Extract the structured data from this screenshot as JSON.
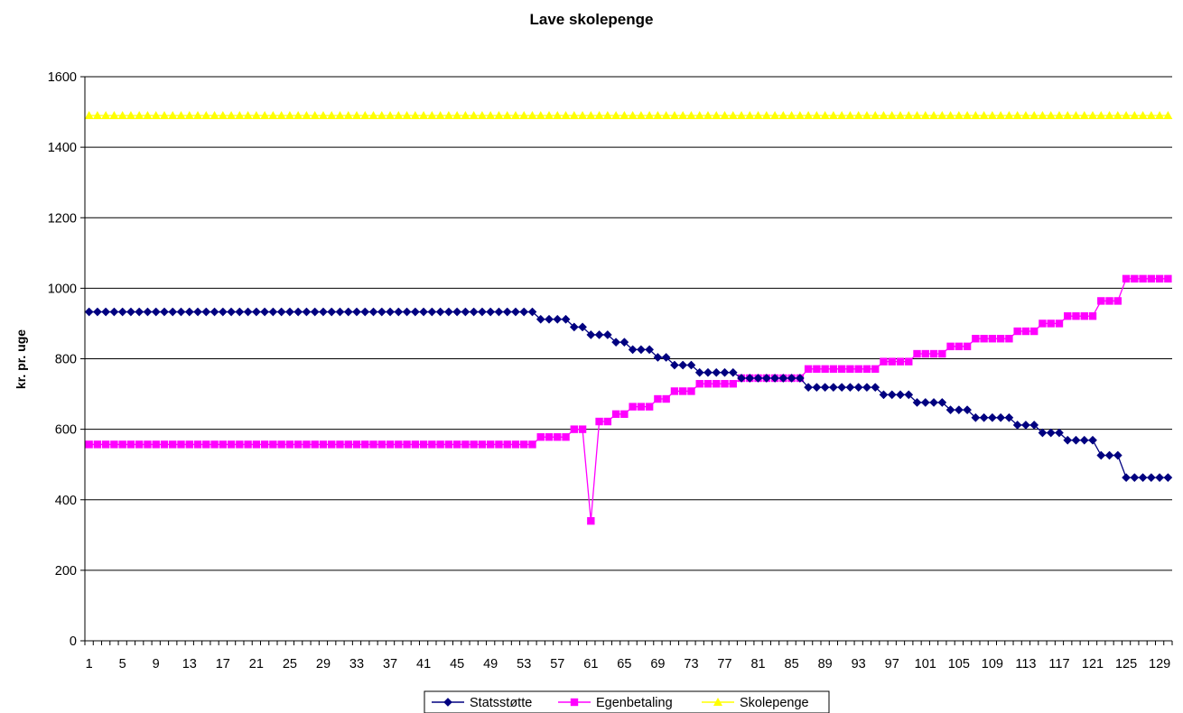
{
  "chart_data": {
    "type": "line",
    "title": "Lave skolepenge",
    "xlabel": "",
    "ylabel": "kr. pr. uge",
    "ylim": [
      0,
      1600
    ],
    "yticks": [
      0,
      200,
      400,
      600,
      800,
      1000,
      1200,
      1400,
      1600
    ],
    "x_range": [
      1,
      130
    ],
    "xtick_labels": [
      "1",
      "5",
      "9",
      "13",
      "17",
      "21",
      "25",
      "29",
      "33",
      "37",
      "41",
      "45",
      "49",
      "53",
      "57",
      "61",
      "65",
      "69",
      "73",
      "77",
      "81",
      "85",
      "89",
      "93",
      "97",
      "101",
      "105",
      "109",
      "113",
      "117",
      "121",
      "125",
      "129"
    ],
    "grid": "horizontal",
    "legend_position": "bottom",
    "series": [
      {
        "name": "Statsstøtte",
        "color": "#000080",
        "marker": "diamond",
        "segments": [
          [
            1,
            54,
            933
          ],
          [
            55,
            58,
            912
          ],
          [
            59,
            60,
            890
          ],
          [
            61,
            63,
            868
          ],
          [
            64,
            65,
            847
          ],
          [
            66,
            68,
            826
          ],
          [
            69,
            70,
            804
          ],
          [
            71,
            73,
            782
          ],
          [
            74,
            78,
            761
          ],
          [
            79,
            86,
            745
          ],
          [
            87,
            95,
            719
          ],
          [
            96,
            99,
            698
          ],
          [
            100,
            103,
            676
          ],
          [
            104,
            106,
            655
          ],
          [
            107,
            111,
            633
          ],
          [
            112,
            114,
            612
          ],
          [
            115,
            117,
            590
          ],
          [
            118,
            121,
            569
          ],
          [
            122,
            124,
            526
          ],
          [
            125,
            130,
            463
          ]
        ]
      },
      {
        "name": "Egenbetaling",
        "color": "#ff00ff",
        "marker": "square",
        "segments": [
          [
            1,
            54,
            557
          ],
          [
            55,
            58,
            578
          ],
          [
            59,
            60,
            600
          ],
          [
            61,
            61,
            340
          ],
          [
            62,
            63,
            622
          ],
          [
            64,
            65,
            643
          ],
          [
            66,
            68,
            664
          ],
          [
            69,
            70,
            686
          ],
          [
            71,
            73,
            708
          ],
          [
            74,
            78,
            729
          ],
          [
            79,
            86,
            745
          ],
          [
            87,
            95,
            771
          ],
          [
            96,
            99,
            792
          ],
          [
            100,
            103,
            814
          ],
          [
            104,
            106,
            835
          ],
          [
            107,
            111,
            857
          ],
          [
            112,
            114,
            878
          ],
          [
            115,
            117,
            900
          ],
          [
            118,
            121,
            921
          ],
          [
            122,
            124,
            964
          ],
          [
            125,
            130,
            1027
          ]
        ]
      },
      {
        "name": "Skolepenge",
        "color": "#ffff00",
        "marker": "triangle",
        "segments": [
          [
            1,
            130,
            1490
          ]
        ]
      }
    ]
  }
}
